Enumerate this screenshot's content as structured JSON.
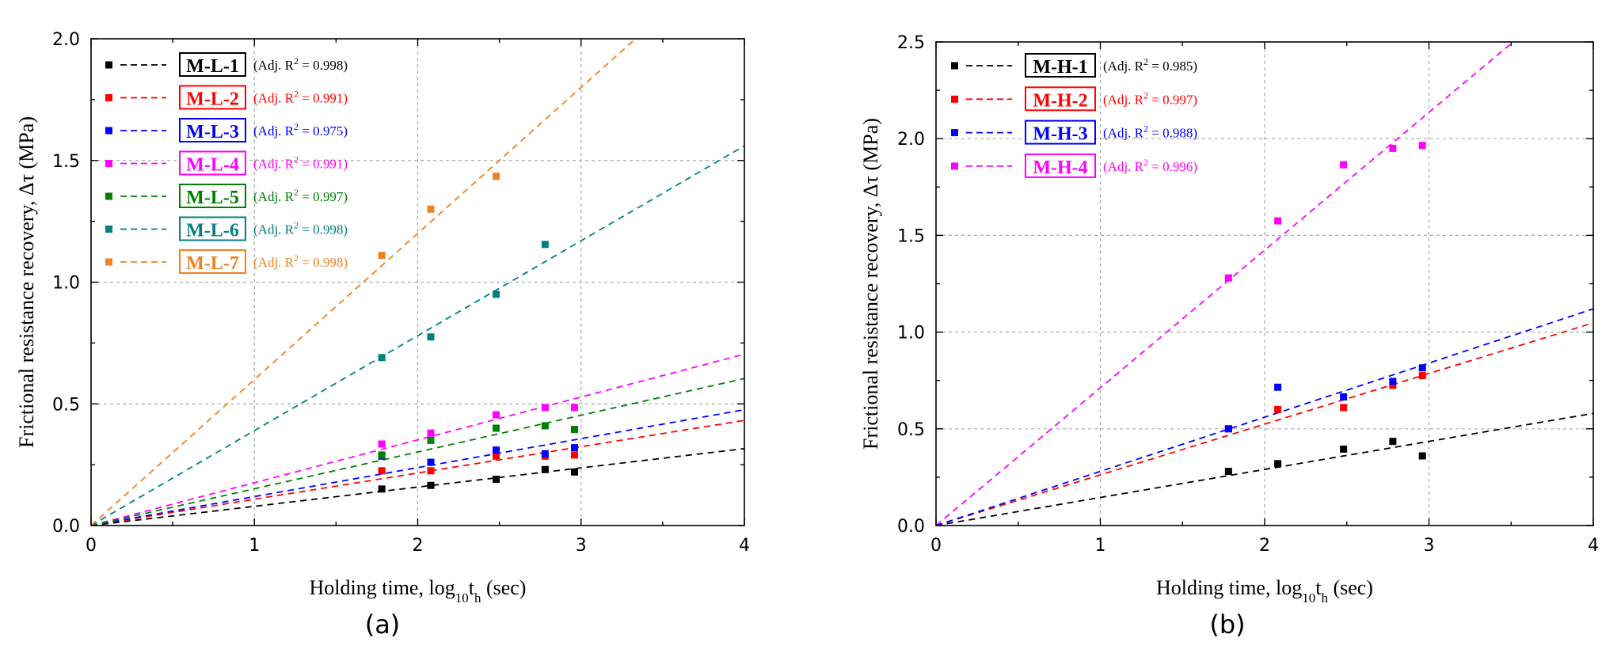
{
  "chart_data": [
    {
      "type": "scatter",
      "panel_label": "(a)",
      "xlabel": "Holding time, log",
      "xlabel_sub": "10",
      "xlabel_mid": "t",
      "xlabel_sub2": "h",
      "xlabel_tail": " (sec)",
      "ylabel": "Frictional resistance recovery, Δτ (MPa)",
      "xlim": [
        0,
        4
      ],
      "ylim": [
        0,
        2.0
      ],
      "xticks": [
        0,
        1,
        2,
        3,
        4
      ],
      "xtick_labels": [
        "0",
        "1",
        "2",
        "3",
        "4"
      ],
      "yticks": [
        0.0,
        0.5,
        1.0,
        1.5,
        2.0
      ],
      "ytick_labels": [
        "0.0",
        "0.5",
        "1.0",
        "1.5",
        "2.0"
      ],
      "grid": true,
      "legend_position": "top-left",
      "series": [
        {
          "name": "M-L-1",
          "r2_label": "(Adj. R",
          "r2_value": " = 0.998)",
          "color": "#000000",
          "x": [
            1.78,
            2.08,
            2.48,
            2.78,
            2.96
          ],
          "y": [
            0.15,
            0.165,
            0.19,
            0.23,
            0.22
          ],
          "slope": 0.079
        },
        {
          "name": "M-L-2",
          "r2_label": "(Adj. R",
          "r2_value": " = 0.991)",
          "color": "#ff0000",
          "x": [
            1.78,
            2.08,
            2.48,
            2.78,
            2.96
          ],
          "y": [
            0.225,
            0.225,
            0.285,
            0.285,
            0.29
          ],
          "slope": 0.108
        },
        {
          "name": "M-L-3",
          "r2_label": "(Adj. R",
          "r2_value": " = 0.975)",
          "color": "#0000ff",
          "x": [
            1.78,
            2.08,
            2.48,
            2.78,
            2.96
          ],
          "y": [
            0.285,
            0.26,
            0.31,
            0.295,
            0.32
          ],
          "slope": 0.119
        },
        {
          "name": "M-L-4",
          "r2_label": "(Adj. R",
          "r2_value": " = 0.991)",
          "color": "#ff00ff",
          "x": [
            1.78,
            2.08,
            2.48,
            2.78,
            2.96
          ],
          "y": [
            0.335,
            0.38,
            0.455,
            0.485,
            0.485
          ],
          "slope": 0.176
        },
        {
          "name": "M-L-5",
          "r2_label": "(Adj. R",
          "r2_value": " = 0.997)",
          "color": "#008000",
          "x": [
            1.78,
            2.08,
            2.48,
            2.78,
            2.96
          ],
          "y": [
            0.29,
            0.35,
            0.4,
            0.41,
            0.395
          ],
          "slope": 0.151
        },
        {
          "name": "M-L-6",
          "r2_label": "(Adj. R",
          "r2_value": " = 0.998)",
          "color": "#008080",
          "x": [
            1.78,
            2.08,
            2.48,
            2.78
          ],
          "y": [
            0.69,
            0.775,
            0.95,
            1.155
          ],
          "slope": 0.39
        },
        {
          "name": "M-L-7",
          "r2_label": "(Adj. R",
          "r2_value": " = 0.998)",
          "color": "#f08020",
          "x": [
            1.78,
            2.08,
            2.48
          ],
          "y": [
            1.11,
            1.3,
            1.435
          ],
          "slope": 0.6
        }
      ]
    },
    {
      "type": "scatter",
      "panel_label": "(b)",
      "xlabel": "Holding time, log",
      "xlabel_sub": "10",
      "xlabel_mid": "t",
      "xlabel_sub2": "h",
      "xlabel_tail": " (sec)",
      "ylabel": "Frictional resistance recovery, Δτ (MPa)",
      "xlim": [
        0,
        4
      ],
      "ylim": [
        0,
        2.5
      ],
      "xticks": [
        0,
        1,
        2,
        3,
        4
      ],
      "xtick_labels": [
        "0",
        "1",
        "2",
        "3",
        "4"
      ],
      "yticks": [
        0.0,
        0.5,
        1.0,
        1.5,
        2.0,
        2.5
      ],
      "ytick_labels": [
        "0.0",
        "0.5",
        "1.0",
        "1.5",
        "2.0",
        "2.5"
      ],
      "grid": true,
      "legend_position": "top-left",
      "series": [
        {
          "name": "M-H-1",
          "r2_label": "(Adj. R",
          "r2_value": " = 0.985)",
          "color": "#000000",
          "x": [
            1.78,
            2.08,
            2.48,
            2.78,
            2.96
          ],
          "y": [
            0.28,
            0.32,
            0.395,
            0.435,
            0.36
          ],
          "slope": 0.145
        },
        {
          "name": "M-H-2",
          "r2_label": "(Adj. R",
          "r2_value": " = 0.997)",
          "color": "#ff0000",
          "x": [
            1.78,
            2.08,
            2.48,
            2.78,
            2.96
          ],
          "y": [
            0.5,
            0.6,
            0.61,
            0.725,
            0.775
          ],
          "slope": 0.262
        },
        {
          "name": "M-H-3",
          "r2_label": "(Adj. R",
          "r2_value": " = 0.988)",
          "color": "#0000ff",
          "x": [
            1.78,
            2.08,
            2.48,
            2.78,
            2.96
          ],
          "y": [
            0.5,
            0.715,
            0.665,
            0.745,
            0.815
          ],
          "slope": 0.28
        },
        {
          "name": "M-H-4",
          "r2_label": "(Adj. R",
          "r2_value": " = 0.996)",
          "color": "#ff00ff",
          "x": [
            1.78,
            2.08,
            2.48,
            2.78,
            2.96
          ],
          "y": [
            1.28,
            1.575,
            1.865,
            1.95,
            1.965
          ],
          "slope": 0.712
        }
      ]
    }
  ]
}
